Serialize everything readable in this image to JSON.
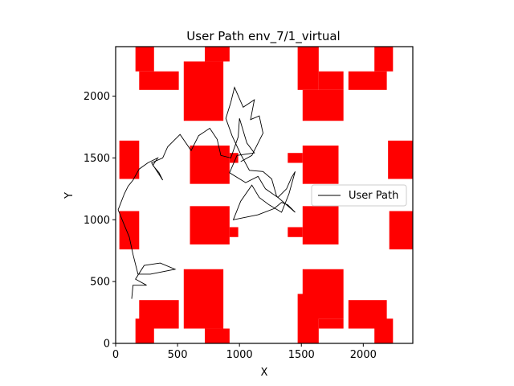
{
  "chart_data": {
    "type": "line",
    "title": "User Path env_7/1_virtual",
    "xlabel": "X",
    "ylabel": "Y",
    "xlim": [
      0,
      2400
    ],
    "ylim": [
      0,
      2400
    ],
    "xticks": [
      0,
      500,
      1000,
      1500,
      2000
    ],
    "yticks": [
      0,
      500,
      1000,
      1500,
      2000
    ],
    "grid": false,
    "legend": {
      "location": "center-right",
      "entries": [
        "User Path"
      ]
    },
    "obstacle_color": "#ff0000",
    "path_color": "#000000",
    "obstacles": [
      [
        160,
        2200,
        310,
        2400
      ],
      [
        190,
        2050,
        510,
        2200
      ],
      [
        550,
        1800,
        870,
        2280
      ],
      [
        720,
        2280,
        920,
        2400
      ],
      [
        1470,
        2050,
        1640,
        2400
      ],
      [
        1510,
        1800,
        1840,
        2050
      ],
      [
        1640,
        2050,
        1840,
        2200
      ],
      [
        1880,
        2050,
        2190,
        2200
      ],
      [
        2090,
        2200,
        2240,
        2400
      ],
      [
        30,
        1330,
        190,
        1640
      ],
      [
        600,
        1290,
        920,
        1600
      ],
      [
        920,
        1460,
        990,
        1540
      ],
      [
        1390,
        1460,
        1510,
        1540
      ],
      [
        1510,
        1290,
        1800,
        1600
      ],
      [
        2200,
        1330,
        2400,
        1640
      ],
      [
        30,
        760,
        190,
        1070
      ],
      [
        600,
        800,
        920,
        1110
      ],
      [
        920,
        860,
        990,
        940
      ],
      [
        1390,
        860,
        1510,
        940
      ],
      [
        1510,
        800,
        1800,
        1110
      ],
      [
        2210,
        760,
        2400,
        1070
      ],
      [
        190,
        120,
        510,
        350
      ],
      [
        160,
        0,
        310,
        200
      ],
      [
        550,
        120,
        870,
        600
      ],
      [
        720,
        0,
        920,
        120
      ],
      [
        1470,
        0,
        1640,
        400
      ],
      [
        1510,
        200,
        1840,
        600
      ],
      [
        1640,
        120,
        1840,
        200
      ],
      [
        1880,
        120,
        2190,
        350
      ],
      [
        2090,
        0,
        2240,
        200
      ]
    ],
    "series": [
      {
        "name": "User Path",
        "points": [
          [
            130,
            360
          ],
          [
            140,
            470
          ],
          [
            250,
            470
          ],
          [
            160,
            520
          ],
          [
            230,
            630
          ],
          [
            360,
            650
          ],
          [
            480,
            600
          ],
          [
            280,
            560
          ],
          [
            180,
            560
          ],
          [
            140,
            720
          ],
          [
            110,
            860
          ],
          [
            60,
            980
          ],
          [
            20,
            1080
          ],
          [
            70,
            1210
          ],
          [
            100,
            1270
          ],
          [
            140,
            1320
          ],
          [
            190,
            1410
          ],
          [
            260,
            1460
          ],
          [
            340,
            1500
          ],
          [
            300,
            1440
          ],
          [
            350,
            1380
          ],
          [
            380,
            1320
          ],
          [
            290,
            1460
          ],
          [
            380,
            1500
          ],
          [
            420,
            1590
          ],
          [
            470,
            1640
          ],
          [
            520,
            1690
          ],
          [
            610,
            1560
          ],
          [
            670,
            1680
          ],
          [
            760,
            1740
          ],
          [
            820,
            1650
          ],
          [
            850,
            1520
          ],
          [
            930,
            1500
          ],
          [
            990,
            1670
          ],
          [
            1000,
            1820
          ],
          [
            1060,
            1620
          ],
          [
            1120,
            1540
          ],
          [
            980,
            1520
          ],
          [
            920,
            1380
          ],
          [
            1050,
            1300
          ],
          [
            1150,
            1350
          ],
          [
            1210,
            1250
          ],
          [
            1310,
            1180
          ],
          [
            1380,
            1250
          ],
          [
            1420,
            1340
          ],
          [
            1450,
            1390
          ],
          [
            1400,
            1210
          ],
          [
            1340,
            1060
          ],
          [
            1240,
            1120
          ],
          [
            1160,
            1180
          ],
          [
            1100,
            1280
          ],
          [
            1010,
            1150
          ],
          [
            950,
            1000
          ],
          [
            1150,
            1040
          ],
          [
            1280,
            1090
          ],
          [
            1340,
            1140
          ],
          [
            1390,
            1120
          ],
          [
            1450,
            1060
          ],
          [
            1300,
            1190
          ],
          [
            1260,
            1330
          ],
          [
            1190,
            1390
          ],
          [
            1080,
            1400
          ],
          [
            1010,
            1530
          ],
          [
            940,
            1680
          ],
          [
            890,
            1820
          ],
          [
            930,
            1950
          ],
          [
            960,
            2070
          ],
          [
            1030,
            1910
          ],
          [
            1120,
            1970
          ],
          [
            1090,
            1810
          ],
          [
            1160,
            1840
          ],
          [
            1190,
            1700
          ],
          [
            1150,
            1620
          ],
          [
            1100,
            1520
          ],
          [
            1010,
            1470
          ]
        ]
      }
    ]
  }
}
